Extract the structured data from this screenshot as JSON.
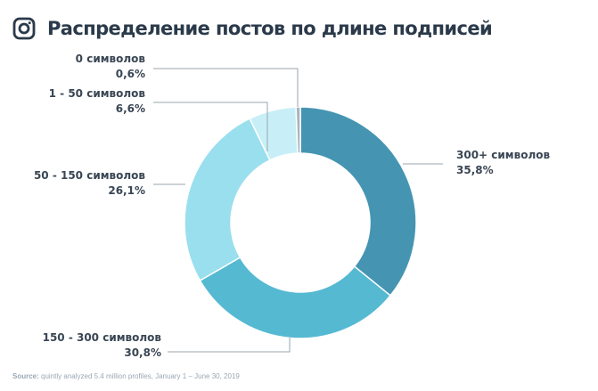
{
  "header": {
    "title": "Распределение постов по длине подписей",
    "logo_icon": "instagram-icon"
  },
  "source": {
    "label": "Source:",
    "text": "quintly analyzed 5.4 million profiles, January 1 – June 30, 2019"
  },
  "chart_data": {
    "type": "pie",
    "donut": true,
    "title": "Распределение постов по длине подписей",
    "slices": [
      {
        "label": "300+ символов",
        "value_label": "35,8%",
        "value": 35.8,
        "color": "#4595b2"
      },
      {
        "label": "150 - 300 символов",
        "value_label": "30,8%",
        "value": 30.8,
        "color": "#55b9d2"
      },
      {
        "label": "50 - 150 символов",
        "value_label": "26,1%",
        "value": 26.1,
        "color": "#99dfee"
      },
      {
        "label": "1 - 50 символов",
        "value_label": "6,6%",
        "value": 6.6,
        "color": "#c8eff7"
      },
      {
        "label": "0 символов",
        "value_label": "0,6%",
        "value": 0.6,
        "color": "#a8b4be"
      }
    ]
  }
}
